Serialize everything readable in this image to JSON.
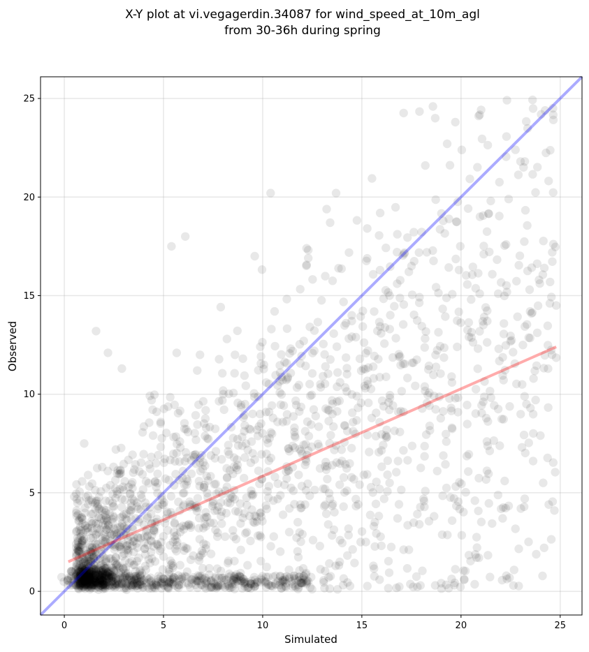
{
  "chart_data": {
    "type": "scatter",
    "title_lines": [
      "X-Y plot at vi.vegagerdin.34087 for wind_speed_at_10m_agl",
      "from 30-36h during spring"
    ],
    "xlabel": "Simulated",
    "ylabel": "Observed",
    "xlim": [
      -1.2,
      26.1
    ],
    "ylim": [
      -1.2,
      26.1
    ],
    "xticks": [
      0,
      5,
      10,
      15,
      20,
      25
    ],
    "yticks": [
      0,
      5,
      10,
      15,
      20,
      25
    ],
    "grid": true,
    "point_color": "#000000",
    "point_alpha": 0.09,
    "reference_line": {
      "name": "y = x",
      "color": "#0000ff",
      "x": [
        -1.2,
        26.1
      ],
      "y": [
        -1.2,
        26.1
      ]
    },
    "regression_line": {
      "color": "#ff0000",
      "x": [
        0.2,
        24.8
      ],
      "y": [
        1.5,
        12.4
      ]
    },
    "points_sample": [
      [
        0.5,
        4.8
      ],
      [
        1.2,
        5.9
      ],
      [
        1.6,
        13.2
      ],
      [
        2.2,
        12.1
      ],
      [
        2.9,
        11.3
      ],
      [
        5.4,
        17.5
      ],
      [
        6.1,
        18.0
      ],
      [
        9.6,
        17.0
      ],
      [
        10.4,
        20.2
      ],
      [
        13.7,
        20.2
      ],
      [
        13.4,
        18.7
      ],
      [
        18.2,
        21.6
      ],
      [
        18.7,
        24.0
      ],
      [
        19.3,
        22.7
      ],
      [
        23.0,
        21.8
      ],
      [
        22.4,
        19.9
      ],
      [
        21.5,
        19.8
      ],
      [
        24.6,
        17.2
      ],
      [
        24.2,
        16.4
      ],
      [
        24.8,
        14.5
      ],
      [
        23.5,
        9.3
      ],
      [
        24.0,
        7.9
      ],
      [
        22.2,
        5.6
      ],
      [
        20.9,
        1.7
      ],
      [
        18.7,
        0.3
      ],
      [
        17.9,
        3.4
      ],
      [
        16.4,
        5.5
      ],
      [
        15.2,
        2.5
      ],
      [
        12.3,
        0.5
      ],
      [
        10.1,
        0.5
      ],
      [
        2.0,
        0.4
      ],
      [
        2.4,
        0.5
      ],
      [
        1.8,
        0.6
      ],
      [
        3.5,
        2.0
      ],
      [
        4.2,
        3.8
      ],
      [
        6.5,
        6.9
      ],
      [
        8.2,
        5.3
      ],
      [
        9.5,
        7.0
      ],
      [
        11.6,
        8.3
      ],
      [
        12.6,
        12.2
      ],
      [
        14.2,
        13.6
      ],
      [
        16.4,
        15.0
      ],
      [
        17.5,
        16.5
      ],
      [
        19.9,
        16.3
      ],
      [
        20.4,
        12.9
      ],
      [
        21.9,
        12.3
      ],
      [
        19.5,
        9.3
      ],
      [
        17.1,
        9.1
      ],
      [
        15.3,
        10.5
      ],
      [
        13.7,
        7.4
      ],
      [
        11.1,
        5.4
      ],
      [
        9.2,
        3.0
      ],
      [
        7.4,
        1.9
      ],
      [
        5.3,
        1.0
      ],
      [
        3.1,
        1.2
      ],
      [
        1.0,
        7.5
      ],
      [
        4.4,
        9.7
      ],
      [
        6.7,
        11.2
      ],
      [
        8.2,
        12.8
      ],
      [
        10.6,
        14.2
      ],
      [
        12.3,
        16.9
      ],
      [
        14.9,
        11.8
      ],
      [
        16.2,
        7.9
      ],
      [
        18.8,
        6.1
      ],
      [
        20.7,
        4.6
      ],
      [
        22.1,
        3.7
      ],
      [
        16.8,
        3.7
      ],
      [
        13.9,
        2.6
      ],
      [
        11.9,
        4.4
      ],
      [
        8.9,
        2.1
      ]
    ]
  }
}
